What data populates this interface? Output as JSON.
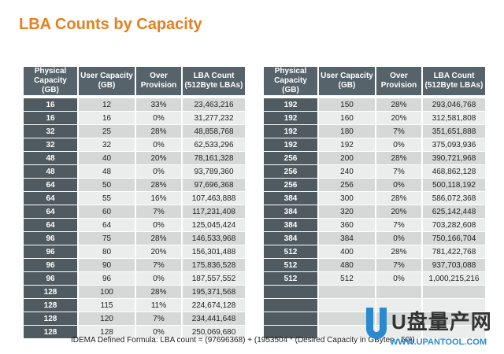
{
  "title": "LBA Counts by Capacity",
  "headers": [
    "Physical Capacity (GB)",
    "User Capacity (GB)",
    "Over Provision",
    "LBA Count (512Byte LBAs)"
  ],
  "left_rows": [
    [
      "16",
      "12",
      "33%",
      "23,463,216"
    ],
    [
      "16",
      "16",
      "0%",
      "31,277,232"
    ],
    [
      "32",
      "25",
      "28%",
      "48,858,768"
    ],
    [
      "32",
      "32",
      "0%",
      "62,533,296"
    ],
    [
      "48",
      "40",
      "20%",
      "78,161,328"
    ],
    [
      "48",
      "48",
      "0%",
      "93,789,360"
    ],
    [
      "64",
      "50",
      "28%",
      "97,696,368"
    ],
    [
      "64",
      "55",
      "16%",
      "107,463,888"
    ],
    [
      "64",
      "60",
      "7%",
      "117,231,408"
    ],
    [
      "64",
      "64",
      "0%",
      "125,045,424"
    ],
    [
      "96",
      "75",
      "28%",
      "146,533,968"
    ],
    [
      "96",
      "80",
      "20%",
      "156,301,488"
    ],
    [
      "96",
      "90",
      "7%",
      "175,836,528"
    ],
    [
      "96",
      "96",
      "0%",
      "187,557,552"
    ],
    [
      "128",
      "100",
      "28%",
      "195,371,568"
    ],
    [
      "128",
      "115",
      "11%",
      "224,674,128"
    ],
    [
      "128",
      "120",
      "7%",
      "234,441,648"
    ],
    [
      "128",
      "128",
      "0%",
      "250,069,680"
    ]
  ],
  "right_rows": [
    [
      "192",
      "150",
      "28%",
      "293,046,768"
    ],
    [
      "192",
      "160",
      "20%",
      "312,581,808"
    ],
    [
      "192",
      "180",
      "7%",
      "351,651,888"
    ],
    [
      "192",
      "192",
      "0%",
      "375,093,936"
    ],
    [
      "256",
      "200",
      "28%",
      "390,721,968"
    ],
    [
      "256",
      "240",
      "7%",
      "468,862,128"
    ],
    [
      "256",
      "256",
      "0%",
      "500,118,192"
    ],
    [
      "384",
      "300",
      "28%",
      "586,072,368"
    ],
    [
      "384",
      "320",
      "20%",
      "625,142,448"
    ],
    [
      "384",
      "360",
      "7%",
      "703,282,608"
    ],
    [
      "384",
      "384",
      "0%",
      "750,166,704"
    ],
    [
      "512",
      "400",
      "28%",
      "781,422,768"
    ],
    [
      "512",
      "480",
      "7%",
      "937,703,088"
    ],
    [
      "512",
      "512",
      "0%",
      "1,000,215,216"
    ],
    [
      "",
      "",
      "",
      ""
    ],
    [
      "",
      "",
      "",
      ""
    ],
    [
      "",
      "",
      "",
      ""
    ],
    [
      "",
      "",
      "",
      ""
    ]
  ],
  "formula": "IDEMA Defined Formula: LBA count = (97696368) + (1953504 * (Desired Capacity in GBytes - 50))",
  "watermark": {
    "name": "U盘量产网",
    "url": "WWW.UPANTOOL.COM"
  },
  "colors": {
    "title": "#e3801f",
    "header": "#56636a",
    "phys_cell": "#4f5b60"
  }
}
